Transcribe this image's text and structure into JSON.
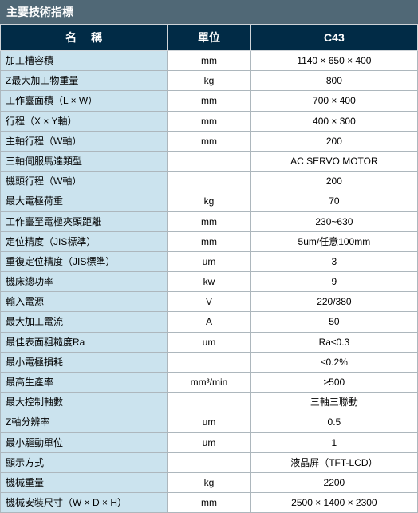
{
  "title": "主要技術指標",
  "headers": {
    "name": "名稱",
    "unit": "單位",
    "model": "C43"
  },
  "colors": {
    "title_bg": "#506876",
    "header_bg": "#012b46",
    "header_fg": "#ffffff",
    "row_name_bg": "#cbe3ee",
    "cell_bg": "#ffffff",
    "border": "#adb7bd",
    "text": "#000000"
  },
  "rows": [
    {
      "name": "加工槽容積",
      "unit": "mm",
      "val": "1140 × 650 × 400"
    },
    {
      "name": "Z最大加工物重量",
      "unit": "kg",
      "val": "800"
    },
    {
      "name": "工作臺面積（L × W）",
      "unit": "mm",
      "val": "700 × 400"
    },
    {
      "name": "行程（X × Y軸）",
      "unit": "mm",
      "val": "400 × 300"
    },
    {
      "name": "主軸行程（W軸）",
      "unit": "mm",
      "val": "200"
    },
    {
      "name": "三軸伺服馬達類型",
      "unit": "",
      "val": "AC SERVO MOTOR"
    },
    {
      "name": "機頭行程（W軸）",
      "unit": "",
      "val": "200"
    },
    {
      "name": "最大電極荷重",
      "unit": "kg",
      "val": "70"
    },
    {
      "name": "工作臺至電極夾頭距離",
      "unit": "mm",
      "val": "230~630"
    },
    {
      "name": "定位精度（JIS標準）",
      "unit": "mm",
      "val": "5um/任意100mm"
    },
    {
      "name": "重復定位精度（JIS標準）",
      "unit": "um",
      "val": "3"
    },
    {
      "name": "機床總功率",
      "unit": "kw",
      "val": "9"
    },
    {
      "name": "輸入電源",
      "unit": "V",
      "val": "220/380"
    },
    {
      "name": "最大加工電流",
      "unit": "A",
      "val": "50"
    },
    {
      "name": "最佳表面粗糙度Ra",
      "unit": "um",
      "val": "Ra≤0.3"
    },
    {
      "name": "最小電極損耗",
      "unit": "",
      "val": "≤0.2%"
    },
    {
      "name": "最高生產率",
      "unit": "mm³/min",
      "val": "≥500"
    },
    {
      "name": "最大控制軸數",
      "unit": "",
      "val": "三軸三聯動"
    },
    {
      "name": "Z軸分辨率",
      "unit": "um",
      "val": "0.5"
    },
    {
      "name": "最小驅動單位",
      "unit": "um",
      "val": "1"
    },
    {
      "name": "顯示方式",
      "unit": "",
      "val": "液晶屏（TFT-LCD）"
    },
    {
      "name": "機械重量",
      "unit": "kg",
      "val": "2200"
    },
    {
      "name": "機械安裝尺寸（W × D × H）",
      "unit": "mm",
      "val": "2500 × 1400 × 2300"
    }
  ]
}
